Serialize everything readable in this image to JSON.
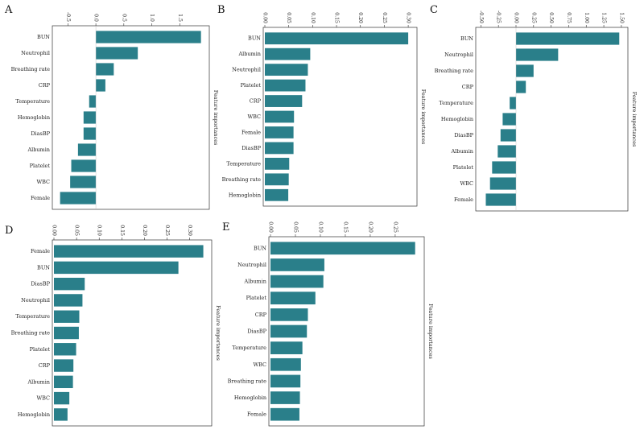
{
  "colors": {
    "bar": "#2a7f8a",
    "frame": "#333333",
    "background": "#ffffff"
  },
  "chart_data": [
    {
      "panel": "A",
      "type": "bar",
      "orientation": "horizontal",
      "categories": [
        "BUN",
        "Neutrophil",
        "Breathing rate",
        "CRP",
        "Temperature",
        "Hemoglobin",
        "DiasBP",
        "Albumin",
        "Platelet",
        "WBC",
        "Female"
      ],
      "values": [
        1.88,
        0.75,
        0.32,
        0.17,
        -0.12,
        -0.22,
        -0.22,
        -0.32,
        -0.44,
        -0.46,
        -0.64
      ],
      "xlim": [
        -0.75,
        2.0
      ],
      "ticks": [
        -0.5,
        0.0,
        0.5,
        1.0,
        1.5
      ],
      "tick_labels": [
        "-0.5",
        "0.0",
        "0.5",
        "1.0",
        "1.5"
      ],
      "axis_label": "Feature importances",
      "zero_line": true
    },
    {
      "panel": "B",
      "type": "bar",
      "orientation": "horizontal",
      "categories": [
        "BUN",
        "Albumin",
        "Neutrophil",
        "Platelet",
        "CRP",
        "WBC",
        "Female",
        "DiasBP",
        "Temperature",
        "Breathing rate",
        "Hemoglobin"
      ],
      "values": [
        0.3,
        0.095,
        0.09,
        0.085,
        0.078,
        0.061,
        0.06,
        0.06,
        0.051,
        0.05,
        0.049
      ],
      "xlim": [
        0.0,
        0.315
      ],
      "ticks": [
        0.0,
        0.05,
        0.1,
        0.15,
        0.2,
        0.25,
        0.3
      ],
      "tick_labels": [
        "0.00",
        "0.05",
        "0.10",
        "0.15",
        "0.20",
        "0.25",
        "0.30"
      ],
      "axis_label": "Feature importances",
      "zero_line": false
    },
    {
      "panel": "C",
      "type": "bar",
      "orientation": "horizontal",
      "categories": [
        "BUN",
        "Neutrophil",
        "Breathing rate",
        "CRP",
        "Temperature",
        "Hemoglobin",
        "DiasBP",
        "Albumin",
        "Platelet",
        "WBC",
        "Female"
      ],
      "values": [
        1.47,
        0.6,
        0.25,
        0.14,
        -0.09,
        -0.19,
        -0.22,
        -0.26,
        -0.34,
        -0.37,
        -0.43
      ],
      "xlim": [
        -0.55,
        1.57
      ],
      "ticks": [
        -0.5,
        -0.25,
        0.0,
        0.25,
        0.5,
        0.75,
        1.0,
        1.25,
        1.5
      ],
      "tick_labels": [
        "-0.50",
        "-0.25",
        "0.00",
        "0.25",
        "0.50",
        "0.75",
        "1.00",
        "1.25",
        "1.50"
      ],
      "axis_label": "Feature importances",
      "zero_line": true
    },
    {
      "panel": "D",
      "type": "bar",
      "orientation": "horizontal",
      "categories": [
        "Female",
        "BUN",
        "DiasBP",
        "Neutrophil",
        "Temperature",
        "Breathing rate",
        "Platelet",
        "CRP",
        "Albumin",
        "WBC",
        "Hemoglobin"
      ],
      "values": [
        0.33,
        0.275,
        0.068,
        0.063,
        0.056,
        0.055,
        0.049,
        0.043,
        0.042,
        0.034,
        0.03
      ],
      "xlim": [
        0.0,
        0.345
      ],
      "ticks": [
        0.0,
        0.05,
        0.1,
        0.15,
        0.2,
        0.25,
        0.3
      ],
      "tick_labels": [
        "0.00",
        "0.05",
        "0.10",
        "0.15",
        "0.20",
        "0.25",
        "0.30"
      ],
      "axis_label": "Feature importances",
      "zero_line": false
    },
    {
      "panel": "E",
      "type": "bar",
      "orientation": "horizontal",
      "categories": [
        "BUN",
        "Neutrophil",
        "Albumin",
        "Platelet",
        "CRP",
        "DiasBP",
        "Temperature",
        "WBC",
        "Breathing rate",
        "Hemoglobin",
        "Female"
      ],
      "values": [
        0.29,
        0.108,
        0.106,
        0.09,
        0.075,
        0.073,
        0.064,
        0.061,
        0.06,
        0.059,
        0.058
      ],
      "xlim": [
        0.0,
        0.305
      ],
      "ticks": [
        0.0,
        0.05,
        0.1,
        0.15,
        0.2,
        0.25
      ],
      "tick_labels": [
        "0.00",
        "0.05",
        "0.10",
        "0.15",
        "0.20",
        "0.25"
      ],
      "axis_label": "Feature importances",
      "zero_line": false
    }
  ]
}
